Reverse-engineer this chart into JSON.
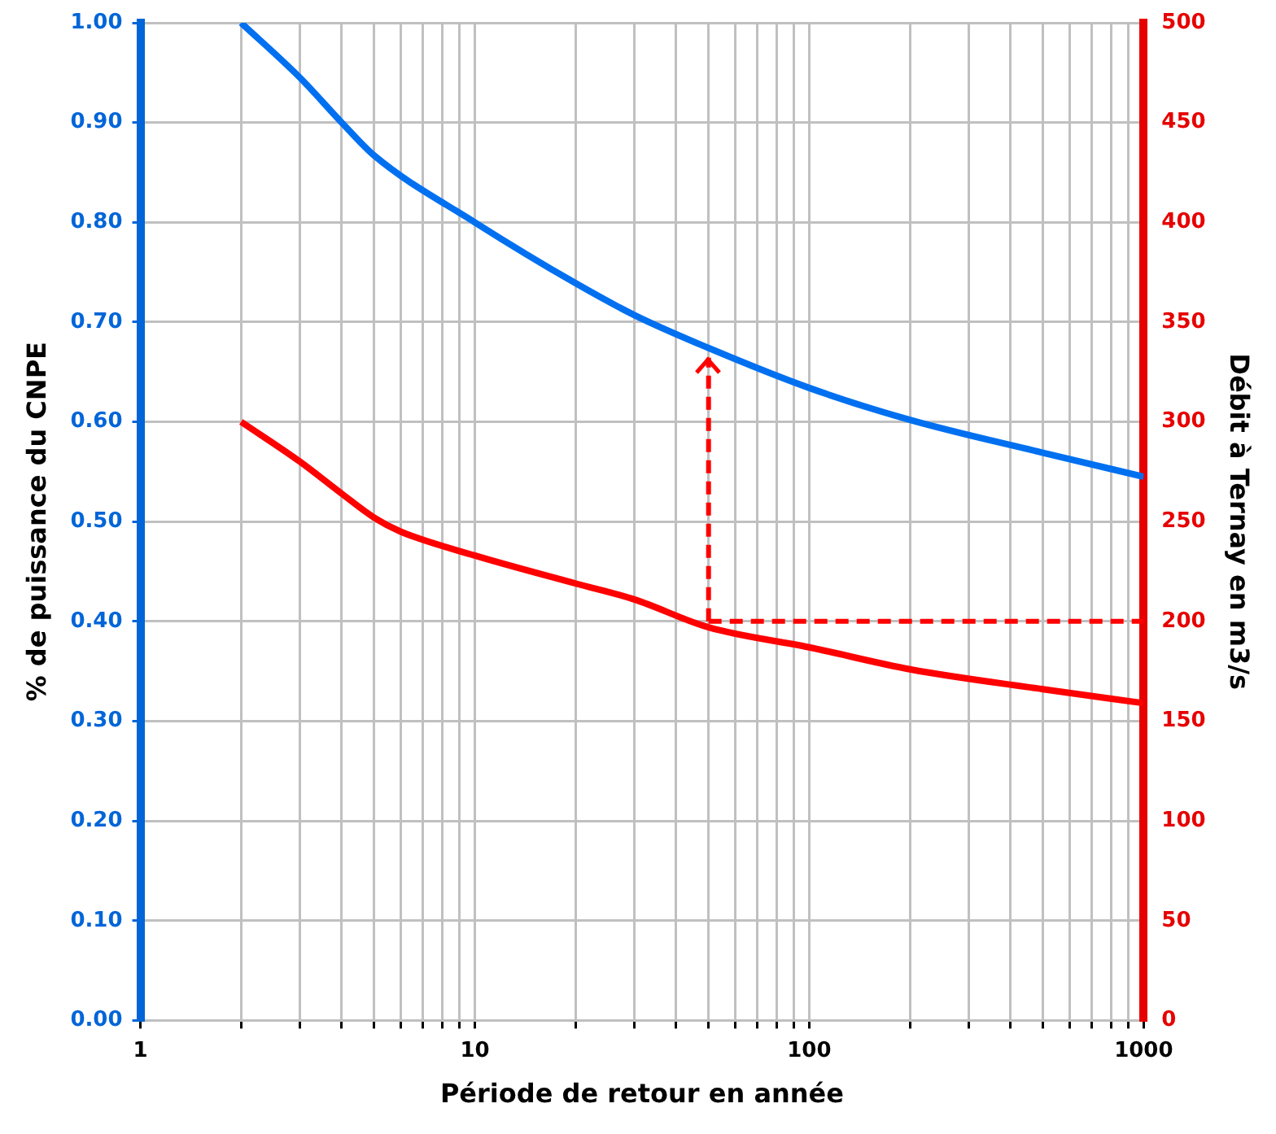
{
  "chart_data": {
    "type": "line",
    "xlabel": "Période de retour en année",
    "ylabel": "% de puissance du CNPE",
    "y2label": "Débit à Ternay en m3/s",
    "log": "x",
    "xlim": [
      1,
      1000
    ],
    "xticks": [
      1,
      {
        "value": 2,
        "label": null
      },
      {
        "value": 3,
        "label": null
      },
      {
        "value": 4,
        "label": null
      },
      {
        "value": 5,
        "label": null
      },
      {
        "value": 6,
        "label": null
      },
      {
        "value": 7,
        "label": null
      },
      {
        "value": 8,
        "label": null
      },
      {
        "value": 9,
        "label": null
      },
      10,
      {
        "value": 20,
        "label": null
      },
      {
        "value": 30,
        "label": null
      },
      {
        "value": 40,
        "label": null
      },
      {
        "value": 50,
        "label": null
      },
      {
        "value": 60,
        "label": null
      },
      {
        "value": 70,
        "label": null
      },
      {
        "value": 80,
        "label": null
      },
      {
        "value": 90,
        "label": null
      },
      100,
      {
        "value": 200,
        "label": null
      },
      {
        "value": 300,
        "label": null
      },
      {
        "value": 400,
        "label": null
      },
      {
        "value": 500,
        "label": null
      },
      {
        "value": 600,
        "label": null
      },
      {
        "value": 700,
        "label": null
      },
      {
        "value": 800,
        "label": null
      },
      {
        "value": 900,
        "label": null
      },
      1000
    ],
    "ylim": [
      0,
      1
    ],
    "yticks": [
      {
        "value": 0,
        "label": "0.00"
      },
      {
        "value": 0.1,
        "label": "0.10"
      },
      {
        "value": 0.2,
        "label": "0.20"
      },
      {
        "value": 0.3,
        "label": "0.30"
      },
      {
        "value": 0.4,
        "label": "0.40"
      },
      {
        "value": 0.5,
        "label": "0.50"
      },
      {
        "value": 0.6,
        "label": "0.60"
      },
      {
        "value": 0.7,
        "label": "0.70"
      },
      {
        "value": 0.8,
        "label": "0.80"
      },
      {
        "value": 0.9,
        "label": "0.90"
      },
      {
        "value": 1,
        "label": "1.00"
      }
    ],
    "y2lim": [
      0,
      500
    ],
    "y2ticks": [
      0,
      50,
      100,
      150,
      200,
      250,
      300,
      350,
      400,
      450,
      500
    ],
    "grid": true,
    "legend": false,
    "marker": "none",
    "line_style": "solid",
    "series": [
      {
        "color": "#0070f0",
        "x": [
          2,
          3,
          4,
          5,
          10,
          20,
          30,
          50,
          100,
          200,
          500,
          1000
        ],
        "values": [
          1.0,
          0.945,
          0.9,
          0.867,
          0.8,
          0.739,
          0.707,
          0.674,
          0.634,
          0.602,
          0.569,
          0.545
        ]
      },
      {
        "color": "#ff0000",
        "axis": "y2",
        "x": [
          2,
          3,
          4,
          5,
          6,
          10,
          20,
          30,
          50,
          100,
          200,
          500,
          1000
        ],
        "values": [
          300,
          280,
          264,
          252,
          245,
          233,
          219,
          211,
          197,
          187,
          176,
          166,
          159
        ]
      }
    ],
    "ref_lines": [
      {
        "axis": "x",
        "value": 50,
        "color": "#ff0000",
        "line_style": "dashed"
      },
      {
        "axis": "y2",
        "value": 200,
        "color": "#ff0000",
        "line_style": "dashed"
      }
    ]
  }
}
